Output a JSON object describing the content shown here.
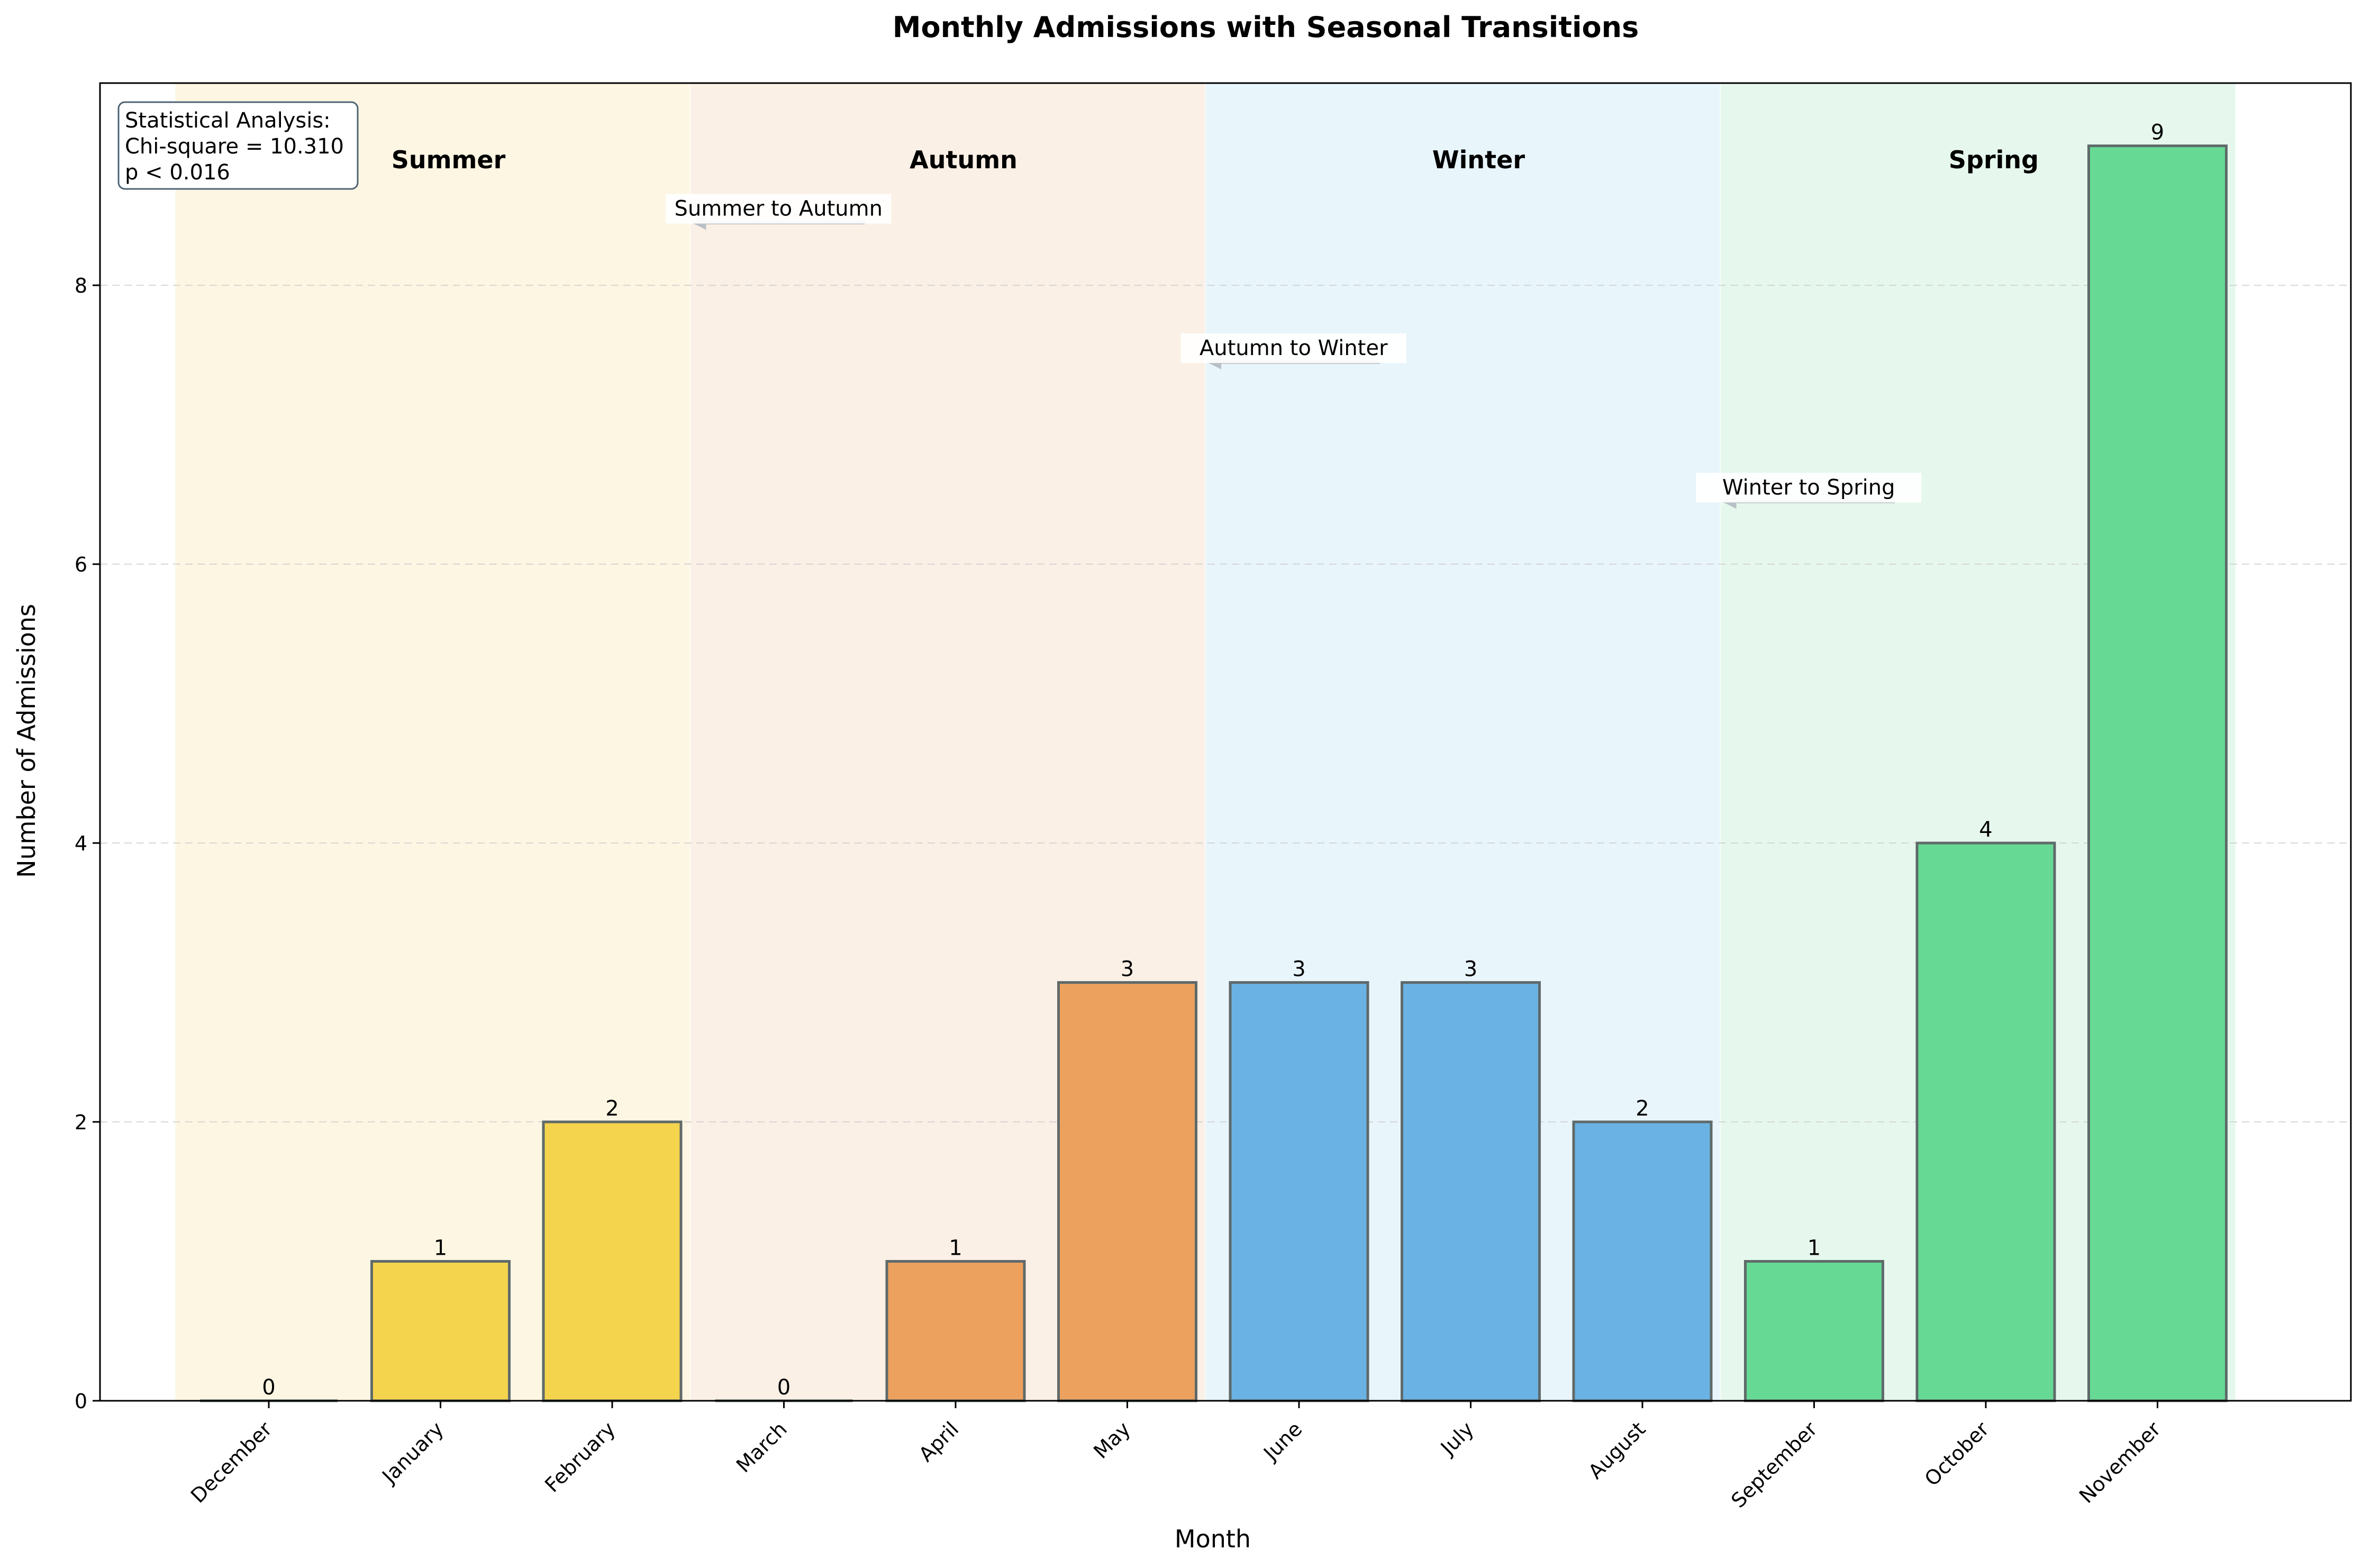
{
  "chart_data": {
    "type": "bar",
    "title": "Monthly Admissions with Seasonal Transitions",
    "xlabel": "Month",
    "ylabel": "Number of Admissions",
    "ylim": [
      0,
      9.45
    ],
    "yticks": [
      0,
      2,
      4,
      6,
      8
    ],
    "grid": "y-dashed",
    "categories": [
      "December",
      "January",
      "February",
      "March",
      "April",
      "May",
      "June",
      "July",
      "August",
      "September",
      "October",
      "November"
    ],
    "values": [
      0,
      1,
      2,
      0,
      1,
      3,
      3,
      3,
      2,
      1,
      4,
      9
    ],
    "bar_colors": [
      "#f4d44d",
      "#f4d44d",
      "#f4d44d",
      "#eca15e",
      "#eca15e",
      "#eca15e",
      "#6ab2e3",
      "#6ab2e3",
      "#6ab2e3",
      "#66d994",
      "#66d994",
      "#66d994"
    ],
    "bar_edge_color": "#5f6a6a",
    "seasons": [
      {
        "name": "Summer",
        "start_month": "December",
        "end_month": "February",
        "color": "#fdf6e3"
      },
      {
        "name": "Autumn",
        "start_month": "March",
        "end_month": "May",
        "color": "#fbf0e6"
      },
      {
        "name": "Winter",
        "start_month": "June",
        "end_month": "August",
        "color": "#e8f5fb"
      },
      {
        "name": "Spring",
        "start_month": "September",
        "end_month": "November",
        "color": "#e6f8ed"
      }
    ],
    "transitions": [
      {
        "label": "Summer to Autumn",
        "y": 8.45
      },
      {
        "label": "Autumn to Winter",
        "y": 7.45
      },
      {
        "label": "Winter to Spring",
        "y": 6.45
      }
    ],
    "stats_box": {
      "lines": [
        "Statistical Analysis:",
        "Chi-square = 10.310",
        "p < 0.016"
      ]
    }
  }
}
